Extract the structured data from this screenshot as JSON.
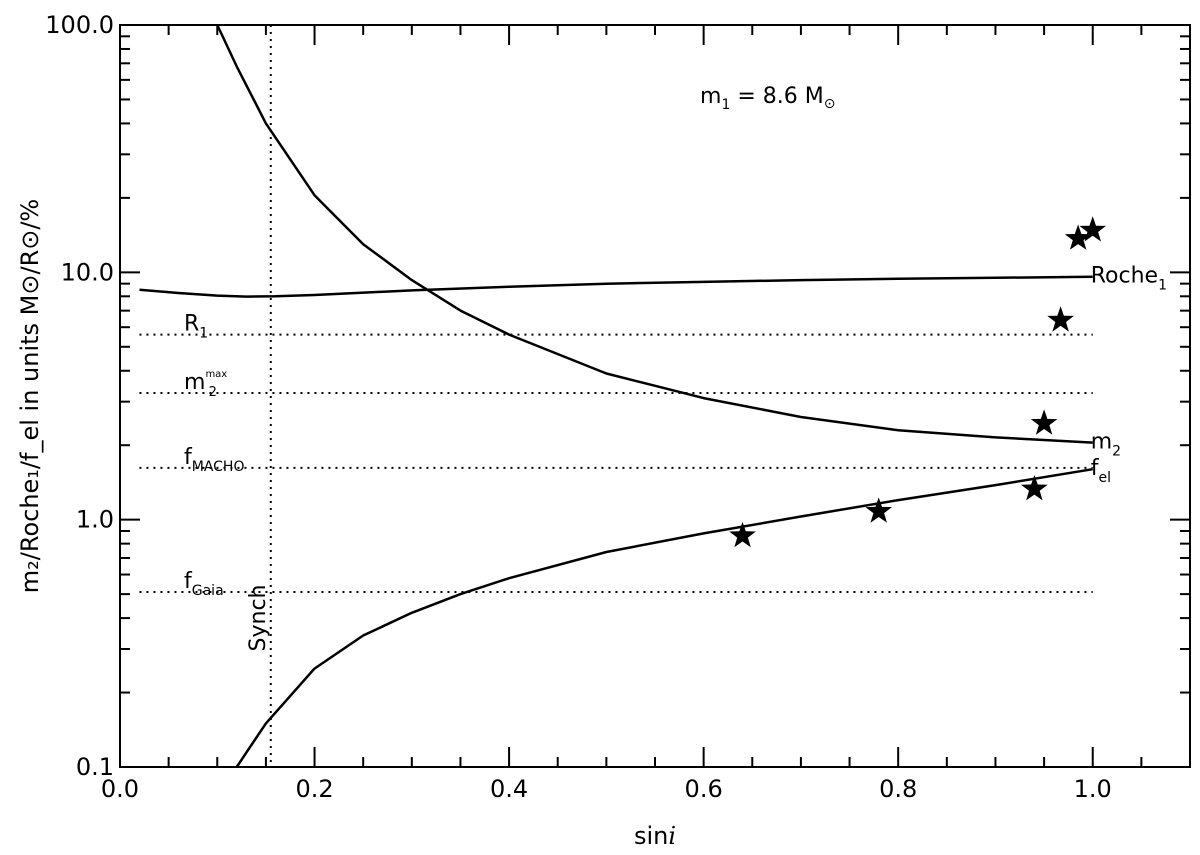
{
  "chart_data": {
    "type": "line",
    "xlabel": "sin",
    "xlabel_italic": "i",
    "ylabel": "m₂/Roche₁/f_el in units M⊙/R⊙/%",
    "xlim": [
      0.0,
      1.1
    ],
    "ylim": [
      0.1,
      100.0
    ],
    "yscale": "log",
    "grid": false,
    "legend": "none",
    "xticks": [
      "0.0",
      "0.2",
      "0.4",
      "0.6",
      "0.8",
      "1.0"
    ],
    "yticks": [
      "0.1",
      "1.0",
      "10.0",
      "100.0"
    ],
    "annotation": "m",
    "annotation_sub": "1",
    "annotation_rest": " = 8.6 M",
    "annotation_sun": "⊙",
    "series": [
      {
        "name": "Roche1",
        "label": "Roche",
        "label_sub": "1",
        "style": "solid",
        "x": [
          0.02,
          0.06,
          0.1,
          0.13,
          0.16,
          0.2,
          0.3,
          0.4,
          0.5,
          0.6,
          0.7,
          0.8,
          0.9,
          1.0
        ],
        "y": [
          8.5,
          8.25,
          8.05,
          7.98,
          8.0,
          8.1,
          8.45,
          8.75,
          9.0,
          9.15,
          9.3,
          9.42,
          9.5,
          9.6
        ]
      },
      {
        "name": "m2",
        "label": "m",
        "label_sub": "2",
        "style": "solid",
        "x": [
          0.1,
          0.12,
          0.15,
          0.2,
          0.25,
          0.3,
          0.35,
          0.4,
          0.5,
          0.6,
          0.7,
          0.8,
          0.9,
          1.0
        ],
        "y": [
          100.0,
          68.0,
          40.0,
          20.5,
          13.0,
          9.3,
          7.0,
          5.6,
          3.9,
          3.1,
          2.6,
          2.3,
          2.15,
          2.05
        ]
      },
      {
        "name": "f_el",
        "label": "f",
        "label_sub": "el",
        "style": "solid",
        "x": [
          0.12,
          0.15,
          0.2,
          0.25,
          0.3,
          0.35,
          0.4,
          0.5,
          0.6,
          0.7,
          0.8,
          0.9,
          1.0
        ],
        "y": [
          0.1,
          0.15,
          0.25,
          0.34,
          0.42,
          0.5,
          0.58,
          0.74,
          0.88,
          1.03,
          1.2,
          1.38,
          1.6
        ]
      },
      {
        "name": "observed",
        "style": "star",
        "x": [
          0.64,
          0.78,
          0.94,
          0.95,
          0.967,
          0.985,
          1.0
        ],
        "y": [
          0.86,
          1.08,
          1.33,
          2.45,
          6.4,
          13.7,
          14.8
        ]
      }
    ],
    "hlines": [
      {
        "name": "R1",
        "label": "R",
        "label_sub": "1",
        "label_sup": "",
        "y": 5.6,
        "x": [
          0.02,
          1.0
        ]
      },
      {
        "name": "m2max",
        "label": "m",
        "label_sub": "2",
        "label_sup": "max",
        "y": 3.25,
        "x": [
          0.02,
          1.0
        ]
      },
      {
        "name": "fMACHO",
        "label": "f",
        "label_sub": "MACHO",
        "label_sup": "",
        "y": 1.62,
        "x": [
          0.02,
          1.0
        ]
      },
      {
        "name": "fGaia",
        "label": "f",
        "label_sub": "Gaia",
        "label_sup": "",
        "y": 0.51,
        "x": [
          0.02,
          1.0
        ]
      }
    ],
    "vline": {
      "name": "Synch",
      "label": "Synch",
      "x": 0.155
    }
  }
}
